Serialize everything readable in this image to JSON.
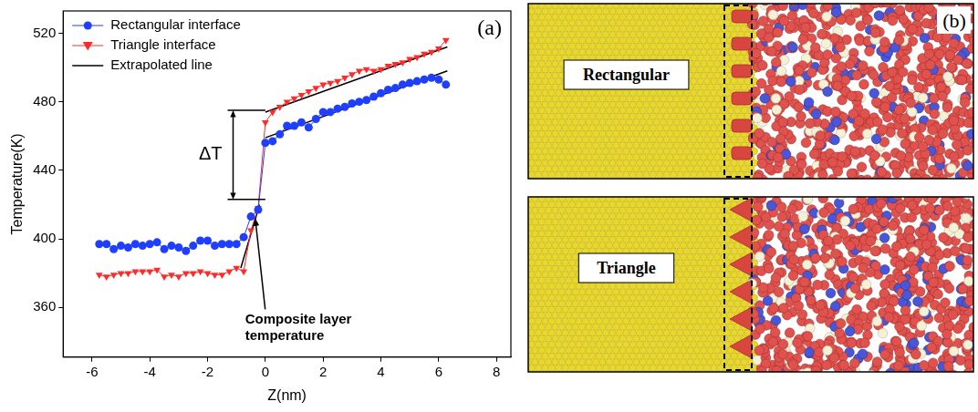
{
  "chart_data": {
    "type": "line",
    "panel_label": "(a)",
    "x_label": "Z(nm)",
    "y_label": "Temperature(K)",
    "xlim": [
      -7,
      8.5
    ],
    "xticks": [
      -6,
      -4,
      -2,
      0,
      2,
      4,
      6,
      8
    ],
    "ylim": [
      331,
      533
    ],
    "yticks": [
      360,
      400,
      440,
      480,
      520
    ],
    "grid": false,
    "legend": "upper left",
    "x": [
      -5.75,
      -5.5,
      -5.25,
      -5,
      -4.75,
      -4.5,
      -4.25,
      -4,
      -3.75,
      -3.5,
      -3.25,
      -3,
      -2.75,
      -2.5,
      -2.25,
      -2,
      -1.75,
      -1.5,
      -1.25,
      -1,
      -0.75,
      -0.5,
      -0.25,
      0,
      0.25,
      0.5,
      0.75,
      1,
      1.25,
      1.5,
      1.75,
      2,
      2.25,
      2.5,
      2.75,
      3,
      3.25,
      3.5,
      3.75,
      4,
      4.25,
      4.5,
      4.75,
      5,
      5.25,
      5.5,
      5.75,
      6,
      6.25
    ],
    "series": [
      {
        "name": "Rectangular interface",
        "color": "#1f3fff",
        "marker": "circle",
        "values": [
          397,
          397,
          394,
          396,
          395,
          397,
          396,
          397,
          398,
          394,
          396,
          395,
          393,
          396,
          399,
          399,
          396,
          397,
          397,
          397,
          401,
          413,
          417,
          456,
          457,
          461,
          466,
          466,
          468,
          465,
          470,
          474,
          474,
          476,
          477,
          479,
          480,
          481,
          483,
          485,
          487,
          488,
          490,
          491,
          492,
          493,
          494,
          493,
          490
        ]
      },
      {
        "name": "Triangle interface",
        "color": "#ff2a2a",
        "marker": "triangle_down",
        "values": [
          379,
          378,
          379,
          380,
          380,
          381,
          381,
          381,
          382,
          378,
          379,
          378,
          380,
          380,
          381,
          380,
          379,
          379,
          381,
          383,
          381,
          405,
          418,
          468,
          474,
          477,
          480,
          482,
          484,
          486,
          488,
          490,
          491,
          492,
          494,
          496,
          498,
          499,
          498,
          499,
          501,
          502,
          503,
          505,
          506,
          508,
          509,
          511,
          516
        ]
      }
    ],
    "extrapolated_lines": {
      "name": "Extrapolated line",
      "color": "#000000",
      "segments": [
        [
          [
            0,
            474
          ],
          [
            6.3,
            512
          ]
        ],
        [
          [
            0,
            459
          ],
          [
            6.3,
            498
          ]
        ],
        [
          [
            -0.85,
            383
          ],
          [
            -0.2,
            420
          ]
        ]
      ]
    },
    "annotations": [
      {
        "text": "ΔT",
        "x": -1.9,
        "y": 449,
        "span": [
          423,
          475
        ]
      },
      {
        "text": "Composite layer temperature",
        "x": -0.7,
        "y": 353,
        "arrow_to": [
          -0.35,
          412
        ]
      }
    ]
  },
  "diagram": {
    "panel_label": "(b)",
    "rows": [
      "Rectangular",
      "Triangle"
    ]
  }
}
